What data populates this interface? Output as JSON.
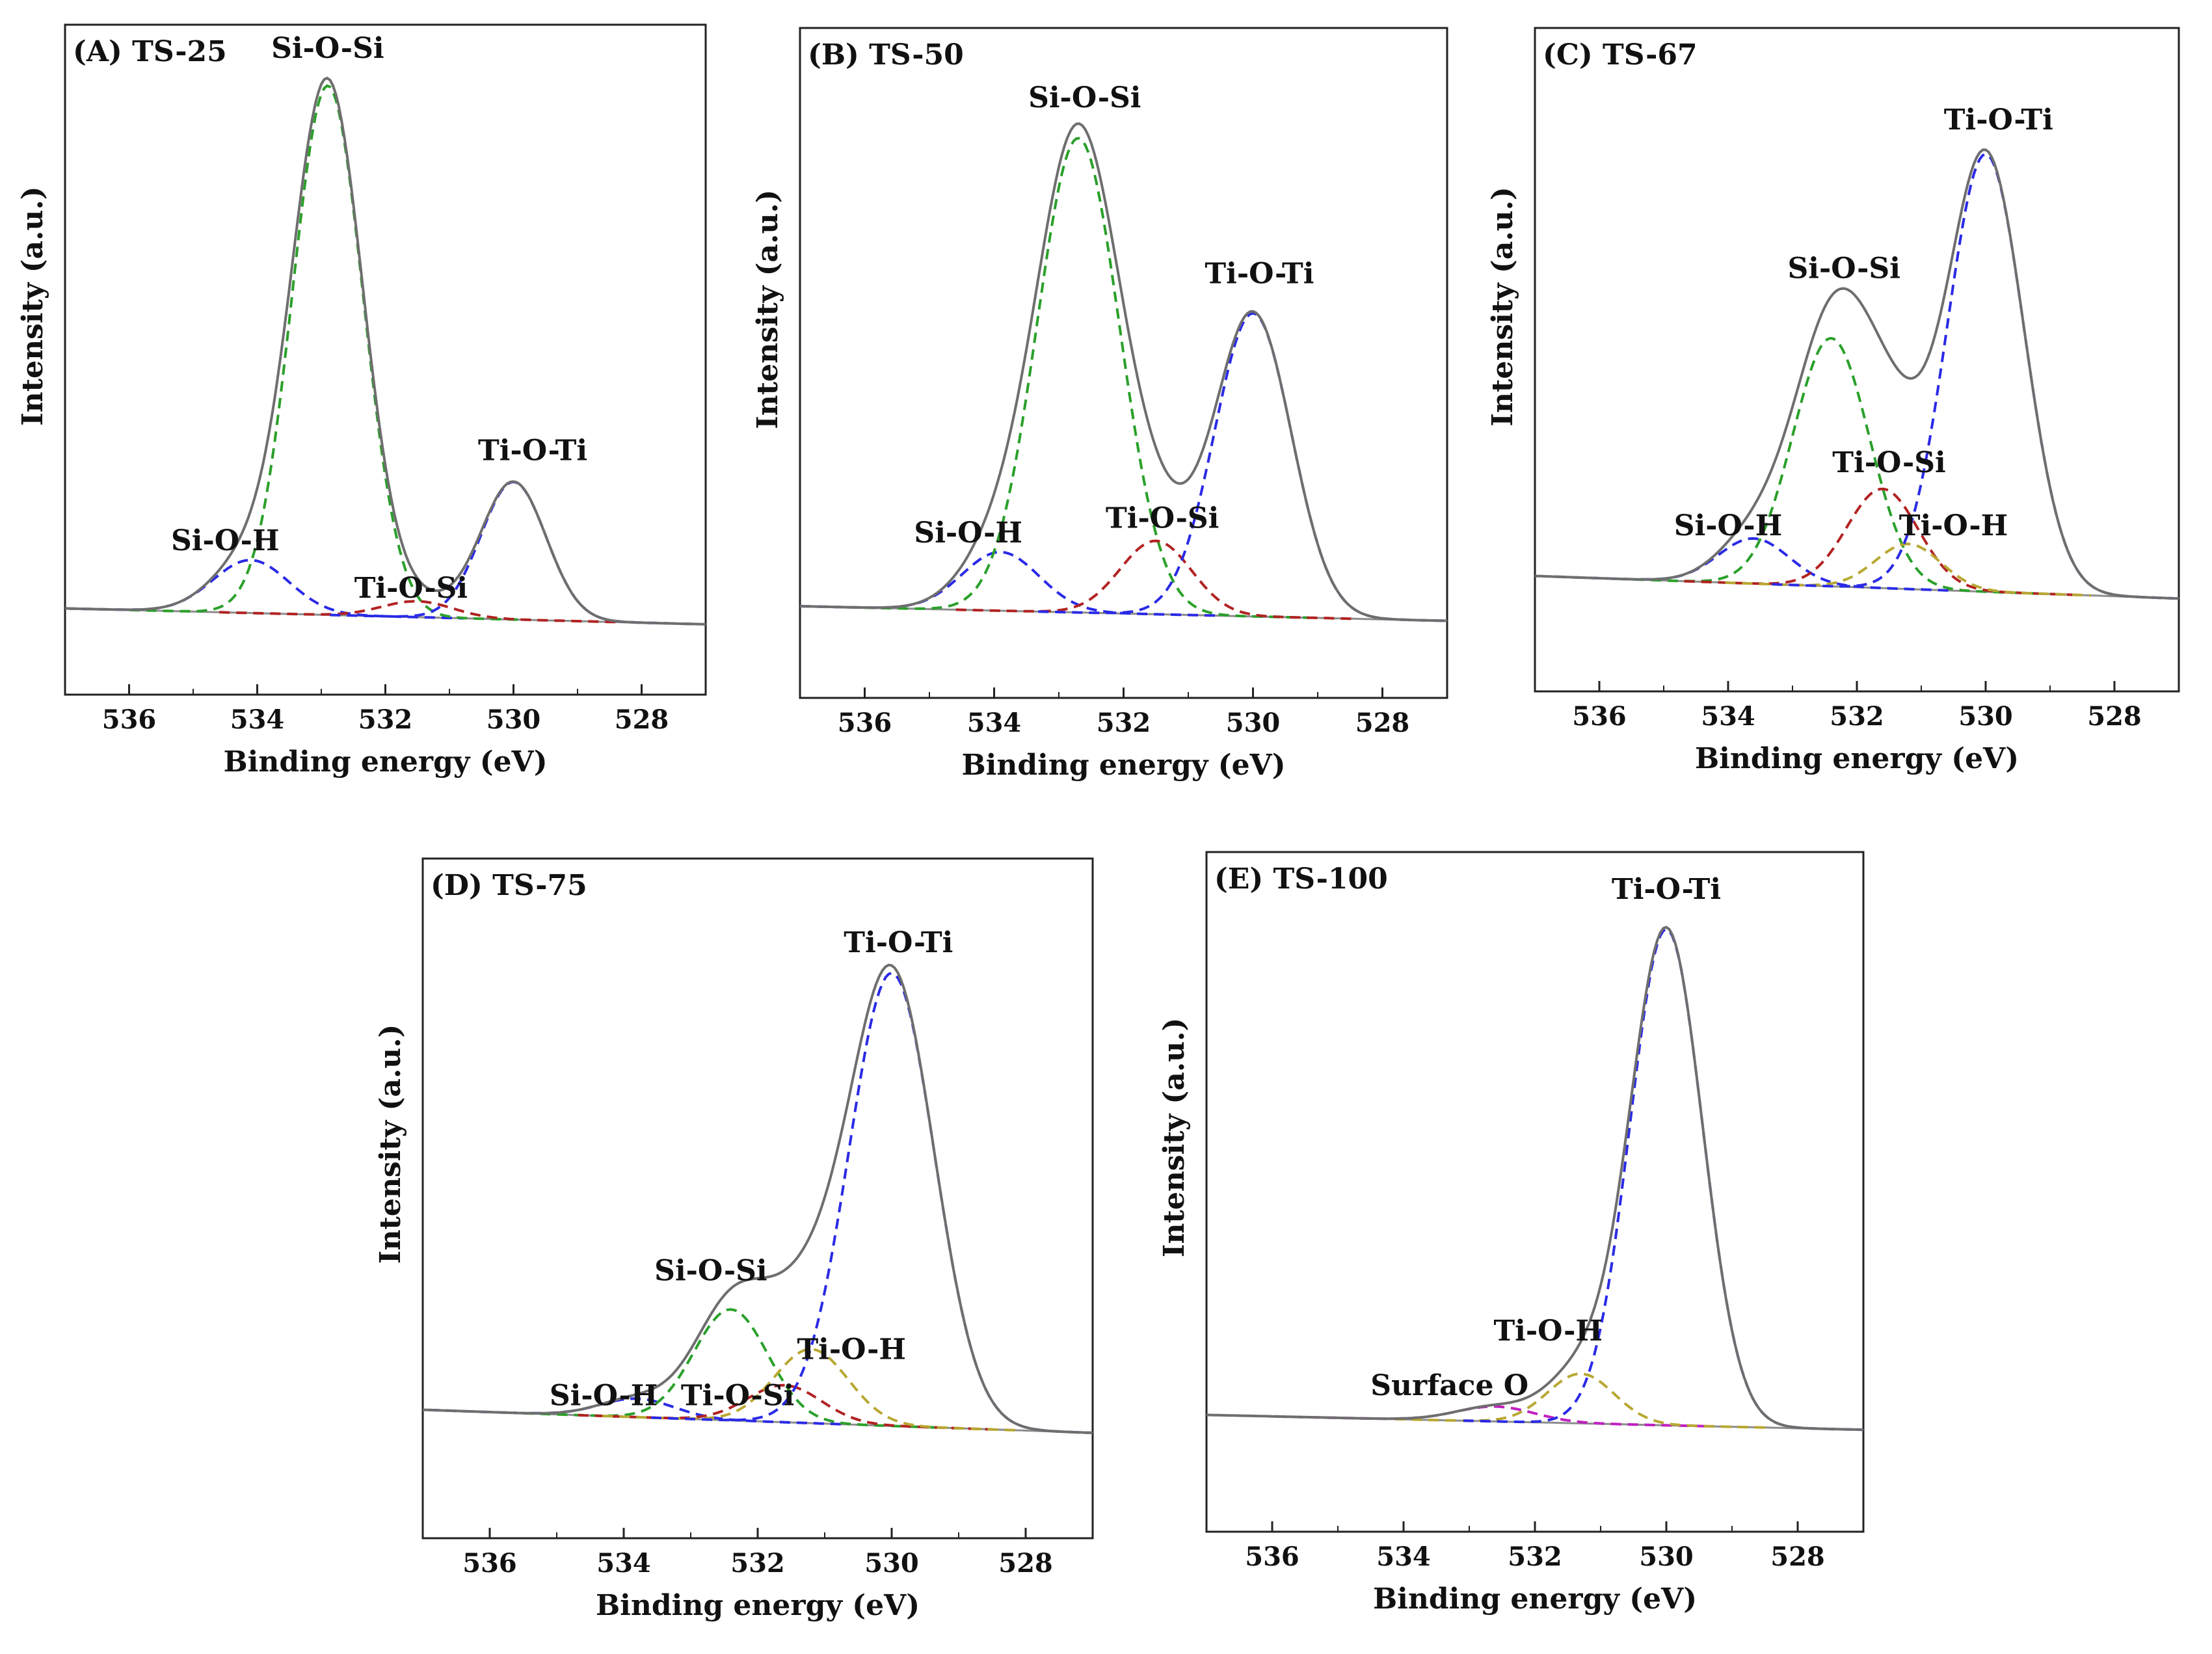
{
  "figure": {
    "background": "#ffffff"
  },
  "component_colors": {
    "envelope": "#6e6e6e",
    "Si-O-Si": "#2aa02a",
    "Ti-O-Ti": "#2a2ae6",
    "Si-O-H": "#2a2ae6",
    "Ti-O-Si": "#b22222",
    "Ti-O-H": "#b8a832",
    "Surface O": "#c020c0",
    "baseline": "#8c8c8c"
  },
  "chart_data": [
    {
      "type": "line",
      "panel_title": "(A) TS-25",
      "xlabel": "Binding energy (eV)",
      "ylabel": "Intensity (a.u.)",
      "xlim": [
        537,
        527
      ],
      "x_ticks": [
        536,
        534,
        532,
        530,
        528
      ],
      "ylim": [
        0,
        1.05
      ],
      "baseline": {
        "left": 0.03,
        "right": 0.0
      },
      "components": [
        {
          "label": "Si-O-H",
          "center": 534.1,
          "height": 0.1,
          "fwhm": 1.4,
          "color_key": "Si-O-H",
          "label_at": [
            534.5,
            0.14
          ]
        },
        {
          "label": "Si-O-Si",
          "center": 532.9,
          "height": 1.0,
          "fwhm": 1.3,
          "color_key": "Si-O-Si",
          "label_at": [
            532.9,
            1.07
          ]
        },
        {
          "label": "Ti-O-Si",
          "center": 531.5,
          "height": 0.03,
          "fwhm": 1.3,
          "color_key": "Ti-O-Si",
          "label_at": [
            531.6,
            0.05
          ]
        },
        {
          "label": "Ti-O-Ti",
          "center": 530.0,
          "height": 0.26,
          "fwhm": 1.2,
          "color_key": "Ti-O-Ti",
          "label_at": [
            529.7,
            0.31
          ]
        }
      ]
    },
    {
      "type": "line",
      "panel_title": "(B) TS-50",
      "xlabel": "Binding energy (eV)",
      "ylabel": "Intensity (a.u.)",
      "xlim": [
        537,
        527
      ],
      "x_ticks": [
        536,
        534,
        532,
        530,
        528
      ],
      "ylim": [
        0,
        1.05
      ],
      "baseline": {
        "left": 0.03,
        "right": 0.0
      },
      "components": [
        {
          "label": "Si-O-H",
          "center": 533.9,
          "height": 0.12,
          "fwhm": 1.4,
          "color_key": "Si-O-H",
          "label_at": [
            534.4,
            0.16
          ]
        },
        {
          "label": "Si-O-Si",
          "center": 532.7,
          "height": 0.97,
          "fwhm": 1.5,
          "color_key": "Si-O-Si",
          "label_at": [
            532.6,
            1.05
          ]
        },
        {
          "label": "Ti-O-Si",
          "center": 531.5,
          "height": 0.15,
          "fwhm": 1.3,
          "color_key": "Ti-O-Si",
          "label_at": [
            531.4,
            0.19
          ]
        },
        {
          "label": "Ti-O-Ti",
          "center": 530.0,
          "height": 0.62,
          "fwhm": 1.4,
          "color_key": "Ti-O-Ti",
          "label_at": [
            529.9,
            0.69
          ]
        }
      ]
    },
    {
      "type": "line",
      "panel_title": "(C) TS-67",
      "xlabel": "Binding energy (eV)",
      "ylabel": "Intensity (a.u.)",
      "xlim": [
        537,
        527
      ],
      "x_ticks": [
        536,
        534,
        532,
        530,
        528
      ],
      "ylim": [
        0,
        1.05
      ],
      "baseline": {
        "left": 0.05,
        "right": 0.0
      },
      "components": [
        {
          "label": "Si-O-H",
          "center": 533.6,
          "height": 0.1,
          "fwhm": 1.3,
          "color_key": "Si-O-H",
          "label_at": [
            534.0,
            0.14
          ]
        },
        {
          "label": "Si-O-Si",
          "center": 532.4,
          "height": 0.55,
          "fwhm": 1.4,
          "color_key": "Si-O-Si",
          "label_at": [
            532.2,
            0.71
          ]
        },
        {
          "label": "Ti-O-Si",
          "center": 531.6,
          "height": 0.22,
          "fwhm": 1.3,
          "color_key": "Ti-O-Si",
          "label_at": [
            531.5,
            0.28
          ]
        },
        {
          "label": "Ti-O-H",
          "center": 531.2,
          "height": 0.1,
          "fwhm": 1.2,
          "color_key": "Ti-O-H",
          "label_at": [
            530.5,
            0.14
          ]
        },
        {
          "label": "Ti-O-Ti",
          "center": 530.0,
          "height": 0.97,
          "fwhm": 1.4,
          "color_key": "Ti-O-Ti",
          "label_at": [
            529.8,
            1.04
          ]
        }
      ]
    },
    {
      "type": "line",
      "panel_title": "(D) TS-75",
      "xlabel": "Binding energy (eV)",
      "ylabel": "Intensity (a.u.)",
      "xlim": [
        537,
        527
      ],
      "x_ticks": [
        536,
        534,
        532,
        530,
        528
      ],
      "ylim": [
        0,
        1.05
      ],
      "baseline": {
        "left": 0.05,
        "right": 0.0
      },
      "components": [
        {
          "label": "Si-O-H",
          "center": 533.8,
          "height": 0.04,
          "fwhm": 1.3,
          "color_key": "Si-O-H",
          "label_at": [
            534.3,
            0.06
          ]
        },
        {
          "label": "Si-O-Si",
          "center": 532.4,
          "height": 0.24,
          "fwhm": 1.3,
          "color_key": "Si-O-Si",
          "label_at": [
            532.7,
            0.33
          ]
        },
        {
          "label": "Ti-O-Si",
          "center": 531.6,
          "height": 0.08,
          "fwhm": 1.3,
          "color_key": "Ti-O-Si",
          "label_at": [
            532.3,
            0.06
          ]
        },
        {
          "label": "Ti-O-H",
          "center": 531.2,
          "height": 0.16,
          "fwhm": 1.3,
          "color_key": "Ti-O-H",
          "label_at": [
            530.6,
            0.16
          ]
        },
        {
          "label": "Ti-O-Ti",
          "center": 530.0,
          "height": 0.98,
          "fwhm": 1.5,
          "color_key": "Ti-O-Ti",
          "label_at": [
            529.9,
            1.04
          ]
        }
      ]
    },
    {
      "type": "line",
      "panel_title": "(E) TS-100",
      "xlabel": "Binding energy (eV)",
      "ylabel": "Intensity (a.u.)",
      "xlim": [
        537,
        527
      ],
      "x_ticks": [
        536,
        534,
        532,
        530,
        528
      ],
      "ylim": [
        0,
        1.05
      ],
      "baseline": {
        "left": 0.03,
        "right": 0.0
      },
      "components": [
        {
          "label": "Surface O",
          "center": 532.6,
          "height": 0.03,
          "fwhm": 1.4,
          "color_key": "Surface O",
          "label_at": [
            533.3,
            0.07
          ]
        },
        {
          "label": "Ti-O-H",
          "center": 531.3,
          "height": 0.1,
          "fwhm": 1.2,
          "color_key": "Ti-O-H",
          "label_at": [
            531.8,
            0.18
          ]
        },
        {
          "label": "Ti-O-Ti",
          "center": 530.0,
          "height": 1.0,
          "fwhm": 1.3,
          "color_key": "Ti-O-Ti",
          "label_at": [
            530.0,
            1.07
          ]
        }
      ]
    }
  ]
}
